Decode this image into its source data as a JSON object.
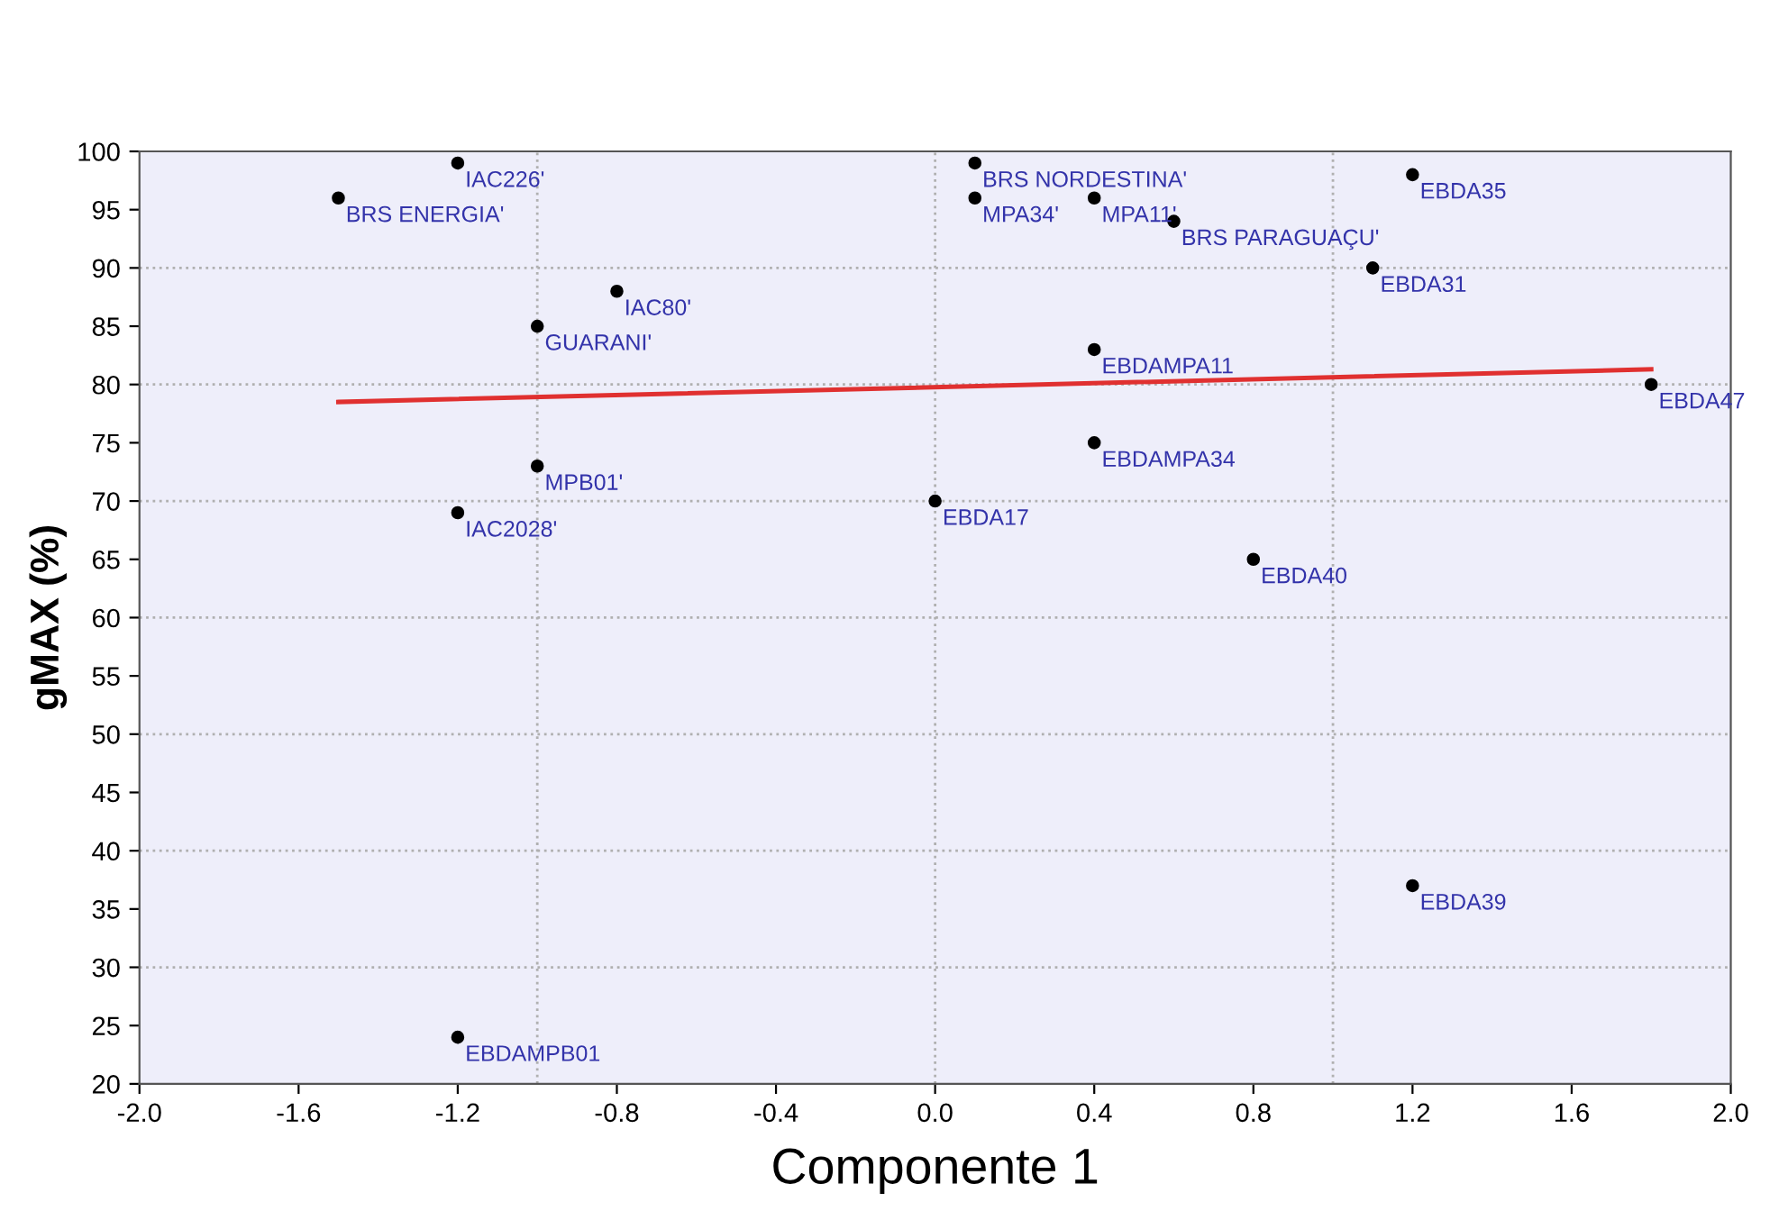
{
  "chart_data": {
    "type": "scatter",
    "xlabel": "Componente 1",
    "ylabel": "gMAX (%)",
    "xlim": [
      -2.0,
      2.0
    ],
    "ylim": [
      20,
      100
    ],
    "xticks": [
      {
        "value": -2.0,
        "label": "-2.0"
      },
      {
        "value": -1.6,
        "label": "-1.6"
      },
      {
        "value": -1.2,
        "label": "-1.2"
      },
      {
        "value": -0.8,
        "label": "-0.8"
      },
      {
        "value": -0.4,
        "label": "-0.4"
      },
      {
        "value": 0.0,
        "label": "0.0"
      },
      {
        "value": 0.4,
        "label": "0.4"
      },
      {
        "value": 0.8,
        "label": "0.8"
      },
      {
        "value": 1.2,
        "label": "1.2"
      },
      {
        "value": 1.6,
        "label": "1.6"
      },
      {
        "value": 2.0,
        "label": "2.0"
      }
    ],
    "yticks": [
      20,
      25,
      30,
      35,
      40,
      45,
      50,
      55,
      60,
      65,
      70,
      75,
      80,
      85,
      90,
      95,
      100
    ],
    "grid": false,
    "legend": false,
    "series": [
      {
        "color": "#000000",
        "marker": "circle",
        "x": [
          -1.5,
          -1.2,
          -0.8,
          -1.0,
          -1.0,
          -1.2,
          -1.2,
          0.1,
          0.1,
          0.4,
          0.6,
          1.2,
          1.1,
          0.4,
          1.8,
          0.4,
          0.0,
          0.8,
          1.2
        ],
        "values": [
          96,
          99,
          88,
          85,
          73,
          69,
          24,
          99,
          96,
          96,
          94,
          98,
          90,
          83,
          80,
          75,
          70,
          65,
          37
        ]
      },
      {
        "type": "line",
        "color": "#e03030",
        "marker": "none",
        "line_style": "solid",
        "x": [
          -1.5,
          1.8
        ],
        "values": [
          78.5,
          81.3
        ]
      }
    ],
    "ref_lines": [
      {
        "axis": "x",
        "value": -1.0,
        "color": "#b0b0b0",
        "line_style": "dotted"
      },
      {
        "axis": "x",
        "value": 0.0,
        "color": "#b0b0b0",
        "line_style": "dotted"
      },
      {
        "axis": "x",
        "value": 1.0,
        "color": "#b0b0b0",
        "line_style": "dotted"
      },
      {
        "axis": "y",
        "value": 30,
        "color": "#b0b0b0",
        "line_style": "dotted"
      },
      {
        "axis": "y",
        "value": 40,
        "color": "#b0b0b0",
        "line_style": "dotted"
      },
      {
        "axis": "y",
        "value": 50,
        "color": "#b0b0b0",
        "line_style": "dotted"
      },
      {
        "axis": "y",
        "value": 60,
        "color": "#b0b0b0",
        "line_style": "dotted"
      },
      {
        "axis": "y",
        "value": 70,
        "color": "#b0b0b0",
        "line_style": "dotted"
      },
      {
        "axis": "y",
        "value": 80,
        "color": "#b0b0b0",
        "line_style": "dotted"
      },
      {
        "axis": "y",
        "value": 90,
        "color": "#b0b0b0",
        "line_style": "dotted"
      }
    ],
    "annotations": [
      {
        "text": "BRS ENERGIA'",
        "x": -1.5,
        "y": 96
      },
      {
        "text": "IAC226'",
        "x": -1.2,
        "y": 99
      },
      {
        "text": "IAC80'",
        "x": -0.8,
        "y": 88
      },
      {
        "text": "GUARANI'",
        "x": -1.0,
        "y": 85
      },
      {
        "text": "MPB01'",
        "x": -1.0,
        "y": 73
      },
      {
        "text": "IAC2028'",
        "x": -1.2,
        "y": 69
      },
      {
        "text": "EBDAMPB01",
        "x": -1.2,
        "y": 24
      },
      {
        "text": "BRS NORDESTINA'",
        "x": 0.1,
        "y": 99
      },
      {
        "text": "MPA34'",
        "x": 0.1,
        "y": 96
      },
      {
        "text": "MPA11'",
        "x": 0.4,
        "y": 96
      },
      {
        "text": "BRS PARAGUAÇU'",
        "x": 0.6,
        "y": 94
      },
      {
        "text": "EBDA35",
        "x": 1.2,
        "y": 98
      },
      {
        "text": "EBDA31",
        "x": 1.1,
        "y": 90
      },
      {
        "text": "EBDAMPA11",
        "x": 0.4,
        "y": 83
      },
      {
        "text": "EBDA47",
        "x": 1.8,
        "y": 80
      },
      {
        "text": "EBDAMPA34",
        "x": 0.4,
        "y": 75
      },
      {
        "text": "EBDA17",
        "x": 0.0,
        "y": 70
      },
      {
        "text": "EBDA40",
        "x": 0.8,
        "y": 65
      },
      {
        "text": "EBDA39",
        "x": 1.2,
        "y": 37
      }
    ]
  }
}
